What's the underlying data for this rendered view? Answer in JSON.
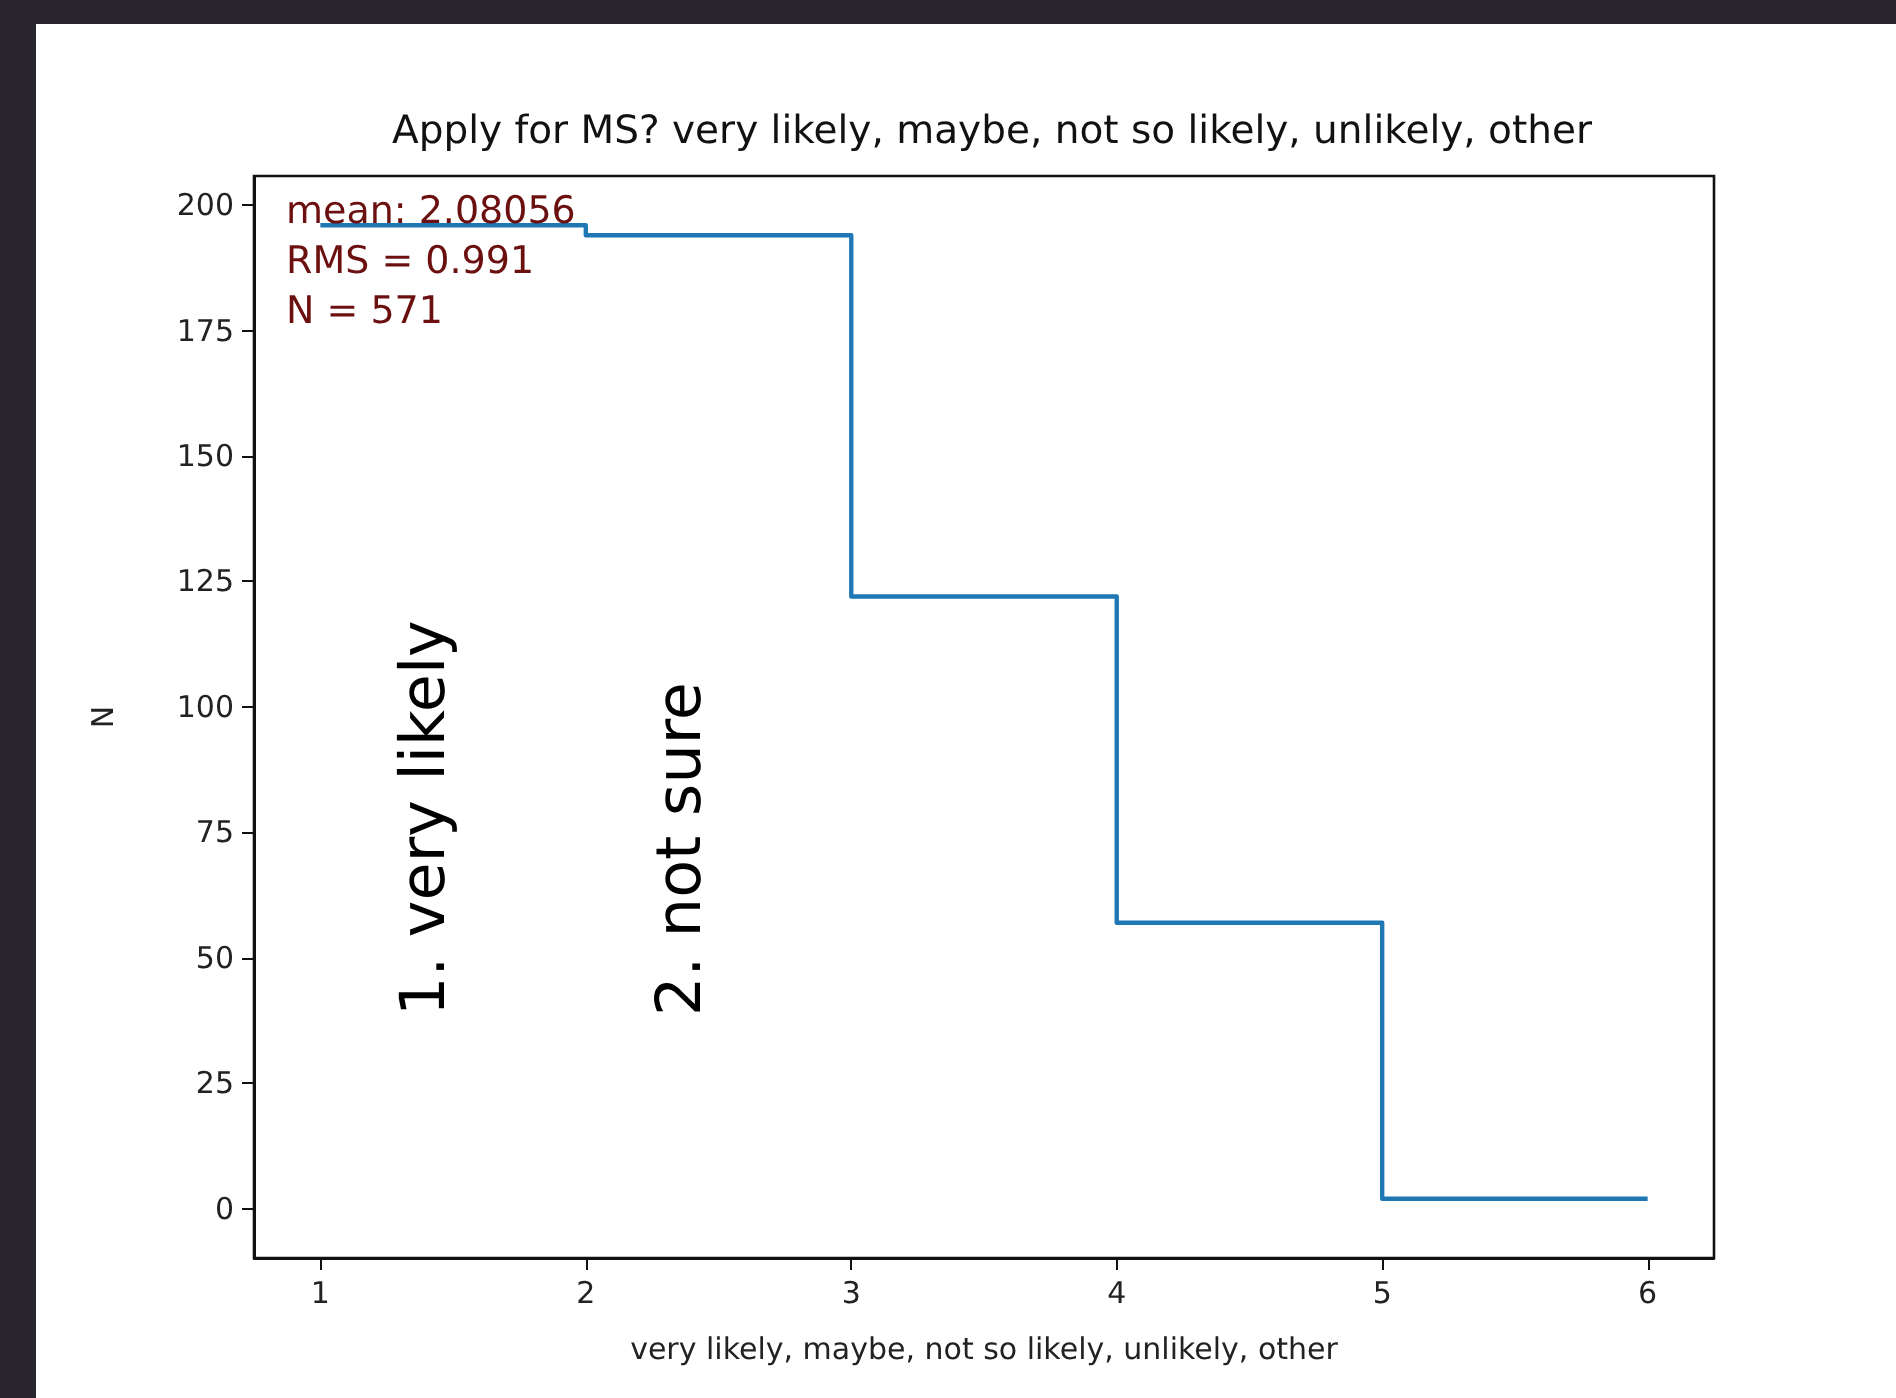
{
  "chart_data": {
    "type": "histogram",
    "title": "Apply for MS? very likely, maybe, not so likely, unlikely, other",
    "xlabel": "very likely, maybe, not so likely, unlikely, other",
    "ylabel": "N",
    "bins": [
      1,
      2,
      3,
      4,
      5,
      6
    ],
    "values": [
      196,
      194,
      122,
      57,
      2
    ],
    "color": "#1f77b4",
    "xlim": [
      0.75,
      6.25
    ],
    "xticks": [
      1,
      2,
      3,
      4,
      5,
      6
    ],
    "ylim": [
      -9.8,
      205.8
    ],
    "yticks": [
      0,
      25,
      50,
      75,
      100,
      125,
      150,
      175,
      200
    ],
    "grid": false,
    "annotations": [
      "mean: 2.08056",
      "RMS = 0.991",
      "N = 571",
      "1. very likely",
      "2. not sure"
    ]
  }
}
